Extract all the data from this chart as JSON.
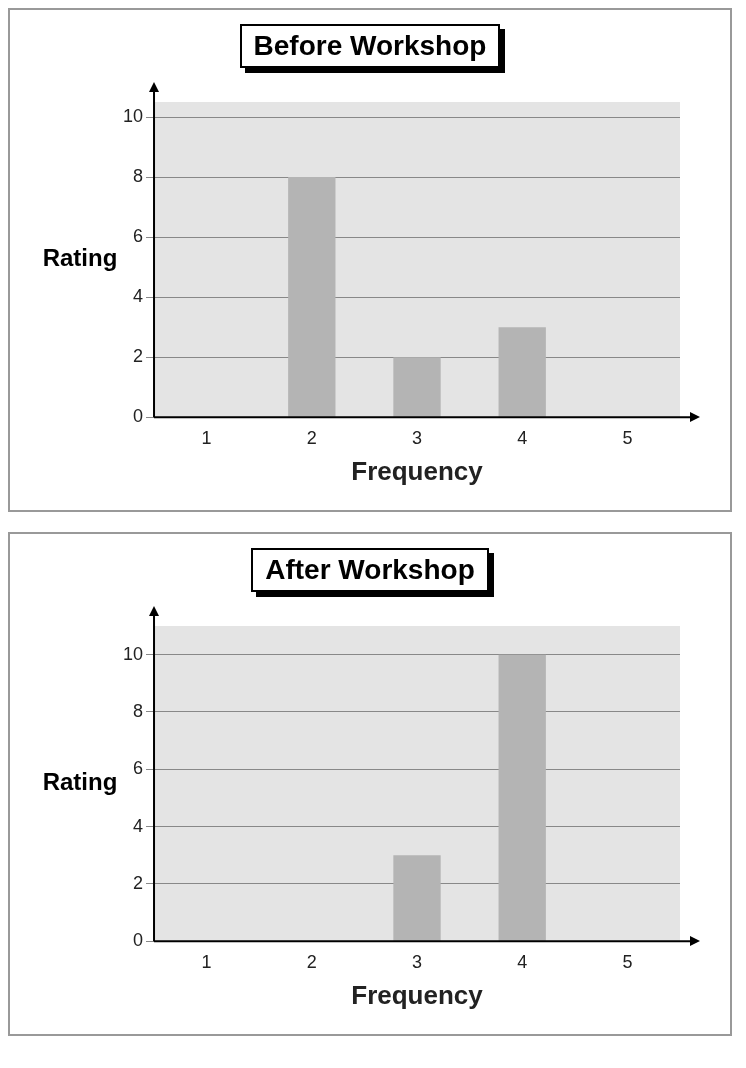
{
  "chart_data": [
    {
      "type": "bar",
      "title": "Before Workshop",
      "xlabel": "Frequency",
      "ylabel": "Rating",
      "categories": [
        "1",
        "2",
        "3",
        "4",
        "5"
      ],
      "values": [
        0,
        8,
        2,
        3,
        0
      ],
      "color": "#b4b4b4",
      "ylim": [
        0,
        10.5
      ],
      "yticks": [
        0,
        2,
        4,
        6,
        8,
        10
      ],
      "grid": "y",
      "legend": false
    },
    {
      "type": "bar",
      "title": "After Workshop",
      "xlabel": "Frequency",
      "ylabel": "Rating",
      "categories": [
        "1",
        "2",
        "3",
        "4",
        "5"
      ],
      "values": [
        0,
        0,
        3,
        10,
        0
      ],
      "color": "#b4b4b4",
      "ylim": [
        0,
        11
      ],
      "yticks": [
        0,
        2,
        4,
        6,
        8,
        10
      ],
      "grid": "y",
      "legend": false
    }
  ]
}
